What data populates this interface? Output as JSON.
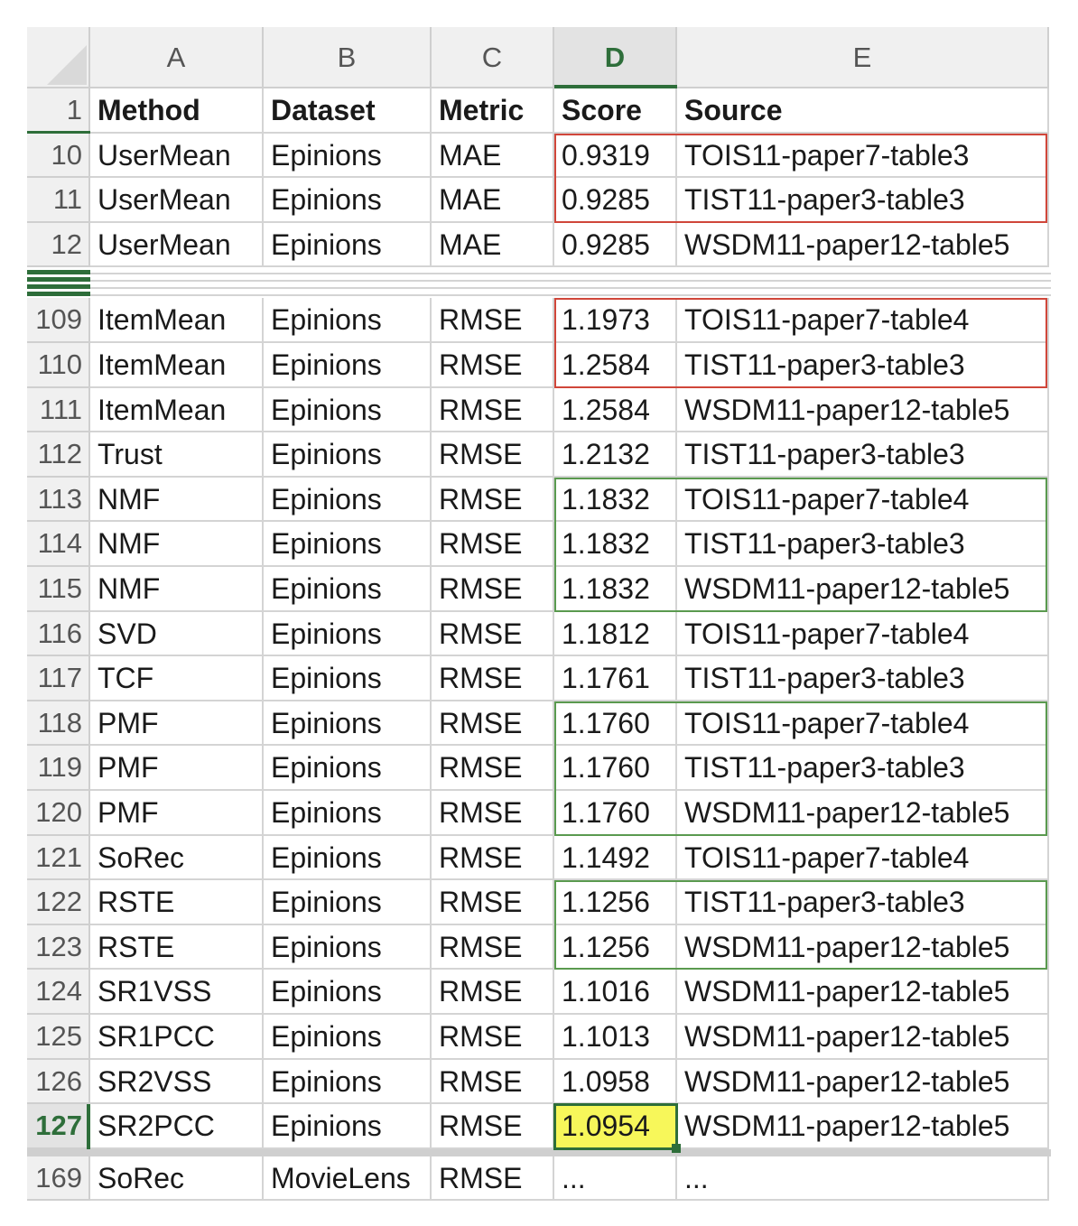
{
  "columns": [
    "A",
    "B",
    "C",
    "D",
    "E"
  ],
  "selected_column": "D",
  "header_row": {
    "row": "1",
    "cells": [
      "Method",
      "Dataset",
      "Metric",
      "Score",
      "Source"
    ]
  },
  "rows": [
    {
      "row": "10",
      "cells": [
        "UserMean",
        "Epinions",
        "MAE",
        "0.9319",
        "TOIS11-paper7-table3"
      ]
    },
    {
      "row": "11",
      "cells": [
        "UserMean",
        "Epinions",
        "MAE",
        "0.9285",
        "TIST11-paper3-table3"
      ]
    },
    {
      "row": "12",
      "cells": [
        "UserMean",
        "Epinions",
        "MAE",
        "0.9285",
        "WSDM11-paper12-table5"
      ]
    },
    {
      "row": "109",
      "cells": [
        "ItemMean",
        "Epinions",
        "RMSE",
        "1.1973",
        "TOIS11-paper7-table4"
      ]
    },
    {
      "row": "110",
      "cells": [
        "ItemMean",
        "Epinions",
        "RMSE",
        "1.2584",
        "TIST11-paper3-table3"
      ]
    },
    {
      "row": "111",
      "cells": [
        "ItemMean",
        "Epinions",
        "RMSE",
        "1.2584",
        "WSDM11-paper12-table5"
      ]
    },
    {
      "row": "112",
      "cells": [
        "Trust",
        "Epinions",
        "RMSE",
        "1.2132",
        "TIST11-paper3-table3"
      ]
    },
    {
      "row": "113",
      "cells": [
        "NMF",
        "Epinions",
        "RMSE",
        "1.1832",
        "TOIS11-paper7-table4"
      ]
    },
    {
      "row": "114",
      "cells": [
        "NMF",
        "Epinions",
        "RMSE",
        "1.1832",
        "TIST11-paper3-table3"
      ]
    },
    {
      "row": "115",
      "cells": [
        "NMF",
        "Epinions",
        "RMSE",
        "1.1832",
        "WSDM11-paper12-table5"
      ]
    },
    {
      "row": "116",
      "cells": [
        "SVD",
        "Epinions",
        "RMSE",
        "1.1812",
        "TOIS11-paper7-table4"
      ]
    },
    {
      "row": "117",
      "cells": [
        "TCF",
        "Epinions",
        "RMSE",
        "1.1761",
        "TIST11-paper3-table3"
      ]
    },
    {
      "row": "118",
      "cells": [
        "PMF",
        "Epinions",
        "RMSE",
        "1.1760",
        "TOIS11-paper7-table4"
      ]
    },
    {
      "row": "119",
      "cells": [
        "PMF",
        "Epinions",
        "RMSE",
        "1.1760",
        "TIST11-paper3-table3"
      ]
    },
    {
      "row": "120",
      "cells": [
        "PMF",
        "Epinions",
        "RMSE",
        "1.1760",
        "WSDM11-paper12-table5"
      ]
    },
    {
      "row": "121",
      "cells": [
        "SoRec",
        "Epinions",
        "RMSE",
        "1.1492",
        "TOIS11-paper7-table4"
      ]
    },
    {
      "row": "122",
      "cells": [
        "RSTE",
        "Epinions",
        "RMSE",
        "1.1256",
        "TIST11-paper3-table3"
      ]
    },
    {
      "row": "123",
      "cells": [
        "RSTE",
        "Epinions",
        "RMSE",
        "1.1256",
        "WSDM11-paper12-table5"
      ]
    },
    {
      "row": "124",
      "cells": [
        "SR1VSS",
        "Epinions",
        "RMSE",
        "1.1016",
        "WSDM11-paper12-table5"
      ]
    },
    {
      "row": "125",
      "cells": [
        "SR1PCC",
        "Epinions",
        "RMSE",
        "1.1013",
        "WSDM11-paper12-table5"
      ]
    },
    {
      "row": "126",
      "cells": [
        "SR2VSS",
        "Epinions",
        "RMSE",
        "1.0958",
        "WSDM11-paper12-table5"
      ]
    },
    {
      "row": "127",
      "cells": [
        "SR2PCC",
        "Epinions",
        "RMSE",
        "1.0954",
        "WSDM11-paper12-table5"
      ]
    },
    {
      "row": "169",
      "cells": [
        "SoRec",
        "MovieLens",
        "RMSE",
        "...",
        "..."
      ]
    }
  ],
  "active_cell": {
    "row": "127",
    "column": "D"
  },
  "highlight_color": "#f7f75a",
  "accent_color": "#2e6e3a",
  "red_outline_color": "#d0463a",
  "green_outline_color": "#5a9a4f",
  "outlined_groups": [
    {
      "color": "red",
      "rows": [
        "10",
        "11"
      ]
    },
    {
      "color": "red",
      "rows": [
        "109",
        "110"
      ]
    },
    {
      "color": "green",
      "rows": [
        "113",
        "114",
        "115"
      ]
    },
    {
      "color": "green",
      "rows": [
        "118",
        "119",
        "120"
      ]
    },
    {
      "color": "green",
      "rows": [
        "122",
        "123"
      ]
    }
  ]
}
